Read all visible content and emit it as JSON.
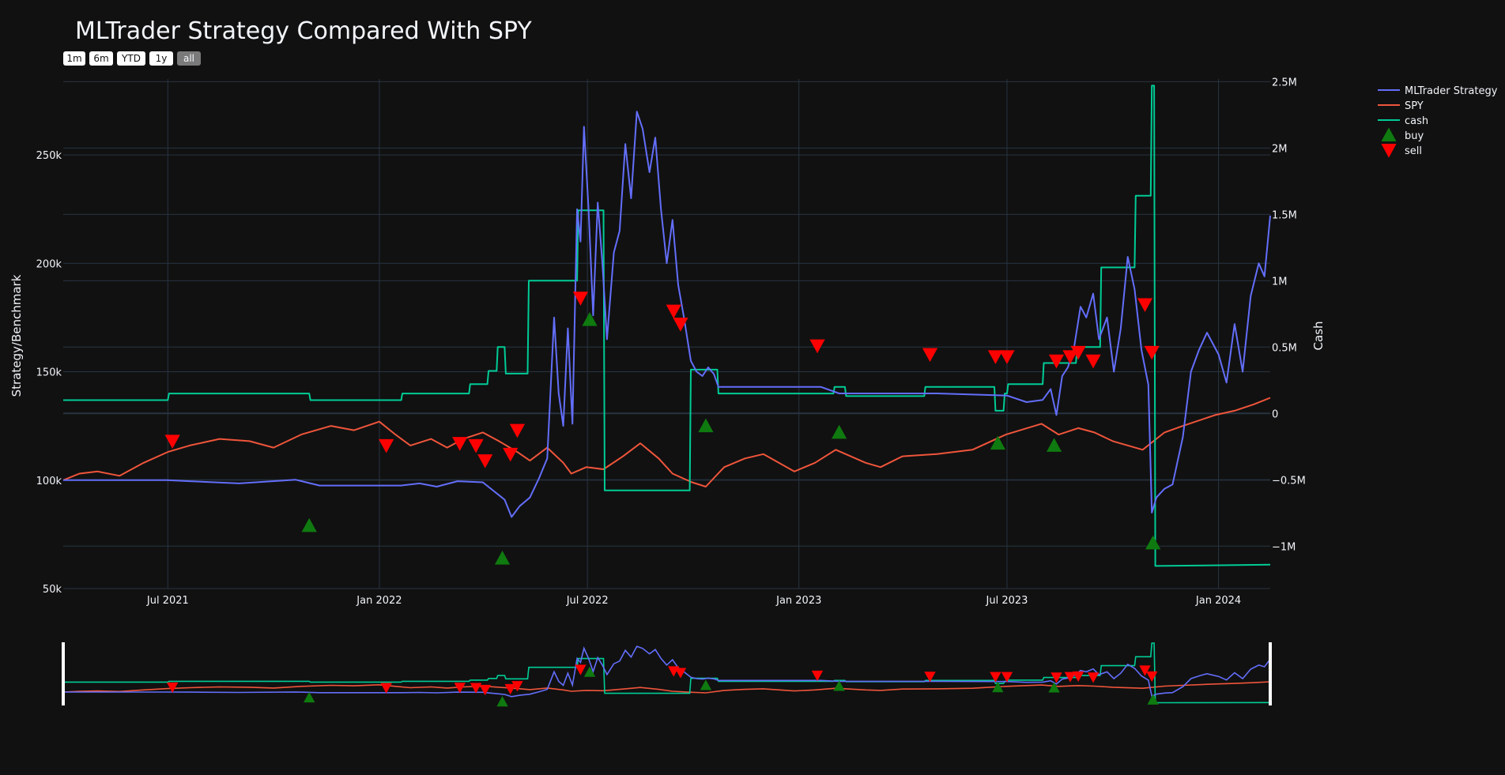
{
  "colors": {
    "background": "#111111",
    "grid": "#283442",
    "strategy": "#636efa",
    "spy": "#ef553b",
    "cash": "#00cc96",
    "buy": "#0f7a0f",
    "sell": "#ff0000"
  },
  "range_selector": {
    "buttons": [
      "1m",
      "6m",
      "YTD",
      "1y",
      "all"
    ],
    "active": "all"
  },
  "chart_data": {
    "type": "line",
    "title": "MLTrader Strategy Compared With SPY",
    "ylabel": "Strategy/Benchmark",
    "y2label": "Cash",
    "xlim": [
      "2021-04-01",
      "2024-02-15"
    ],
    "ylim": [
      50000,
      285000
    ],
    "y2lim": [
      -1320000,
      2520000
    ],
    "x_ticks": [
      {
        "date": "2021-07-01",
        "label": "Jul 2021"
      },
      {
        "date": "2022-01-01",
        "label": "Jan 2022"
      },
      {
        "date": "2022-07-01",
        "label": "Jul 2022"
      },
      {
        "date": "2023-01-01",
        "label": "Jan 2023"
      },
      {
        "date": "2023-07-01",
        "label": "Jul 2023"
      },
      {
        "date": "2024-01-01",
        "label": "Jan 2024"
      }
    ],
    "y_ticks": [
      {
        "value": 50000,
        "label": "50k"
      },
      {
        "value": 100000,
        "label": "100k"
      },
      {
        "value": 150000,
        "label": "150k"
      },
      {
        "value": 200000,
        "label": "200k"
      },
      {
        "value": 250000,
        "label": "250k"
      }
    ],
    "y2_ticks": [
      {
        "value": -1000000,
        "label": "−1M"
      },
      {
        "value": -500000,
        "label": "−0.5M"
      },
      {
        "value": 0,
        "label": "0"
      },
      {
        "value": 500000,
        "label": "0.5M"
      },
      {
        "value": 1000000,
        "label": "1M"
      },
      {
        "value": 1500000,
        "label": "1.5M"
      },
      {
        "value": 2000000,
        "label": "2M"
      },
      {
        "value": 2500000,
        "label": "2.5M"
      }
    ],
    "legend_position": "top-right",
    "series": [
      {
        "name": "MLTrader Strategy",
        "axis": "y",
        "points": [
          [
            "2021-04-01",
            100000
          ],
          [
            "2021-06-30",
            100000
          ],
          [
            "2021-07-20",
            99500
          ],
          [
            "2021-09-01",
            98500
          ],
          [
            "2021-10-20",
            100200
          ],
          [
            "2021-11-10",
            97500
          ],
          [
            "2022-01-01",
            97500
          ],
          [
            "2022-01-20",
            97500
          ],
          [
            "2022-02-05",
            98500
          ],
          [
            "2022-02-20",
            97000
          ],
          [
            "2022-03-10",
            99500
          ],
          [
            "2022-04-01",
            99000
          ],
          [
            "2022-04-20",
            91000
          ],
          [
            "2022-04-26",
            83000
          ],
          [
            "2022-05-03",
            88000
          ],
          [
            "2022-05-12",
            92000
          ],
          [
            "2022-05-20",
            101000
          ],
          [
            "2022-05-27",
            110000
          ],
          [
            "2022-06-02",
            175000
          ],
          [
            "2022-06-06",
            140000
          ],
          [
            "2022-06-10",
            125000
          ],
          [
            "2022-06-14",
            170000
          ],
          [
            "2022-06-18",
            126000
          ],
          [
            "2022-06-22",
            225000
          ],
          [
            "2022-06-25",
            210000
          ],
          [
            "2022-06-28",
            263000
          ],
          [
            "2022-07-02",
            225000
          ],
          [
            "2022-07-06",
            176000
          ],
          [
            "2022-07-10",
            228000
          ],
          [
            "2022-07-14",
            200000
          ],
          [
            "2022-07-18",
            165000
          ],
          [
            "2022-07-24",
            205000
          ],
          [
            "2022-07-29",
            215000
          ],
          [
            "2022-08-03",
            255000
          ],
          [
            "2022-08-08",
            230000
          ],
          [
            "2022-08-13",
            270000
          ],
          [
            "2022-08-18",
            262000
          ],
          [
            "2022-08-24",
            242000
          ],
          [
            "2022-08-29",
            258000
          ],
          [
            "2022-09-03",
            225000
          ],
          [
            "2022-09-08",
            200000
          ],
          [
            "2022-09-13",
            220000
          ],
          [
            "2022-09-18",
            190000
          ],
          [
            "2022-09-23",
            175000
          ],
          [
            "2022-09-29",
            155000
          ],
          [
            "2022-10-04",
            150000
          ],
          [
            "2022-10-09",
            148000
          ],
          [
            "2022-10-14",
            152000
          ],
          [
            "2022-10-19",
            149000
          ],
          [
            "2022-10-23",
            143000
          ],
          [
            "2023-01-01",
            143000
          ],
          [
            "2023-01-20",
            143000
          ],
          [
            "2023-02-05",
            140000
          ],
          [
            "2023-05-01",
            140000
          ],
          [
            "2023-07-01",
            139000
          ],
          [
            "2023-07-18",
            136000
          ],
          [
            "2023-08-01",
            137000
          ],
          [
            "2023-08-08",
            142000
          ],
          [
            "2023-08-13",
            130000
          ],
          [
            "2023-08-18",
            148000
          ],
          [
            "2023-08-23",
            152000
          ],
          [
            "2023-08-28",
            160000
          ],
          [
            "2023-09-03",
            180000
          ],
          [
            "2023-09-08",
            175000
          ],
          [
            "2023-09-14",
            186000
          ],
          [
            "2023-09-19",
            165000
          ],
          [
            "2023-09-26",
            175000
          ],
          [
            "2023-10-02",
            150000
          ],
          [
            "2023-10-08",
            170000
          ],
          [
            "2023-10-14",
            203000
          ],
          [
            "2023-10-20",
            188000
          ],
          [
            "2023-10-26",
            160000
          ],
          [
            "2023-11-01",
            144000
          ],
          [
            "2023-11-04",
            85000
          ],
          [
            "2023-11-08",
            92000
          ],
          [
            "2023-11-15",
            96000
          ],
          [
            "2023-11-22",
            98000
          ],
          [
            "2023-12-01",
            120000
          ],
          [
            "2023-12-08",
            150000
          ],
          [
            "2023-12-15",
            160000
          ],
          [
            "2023-12-22",
            168000
          ],
          [
            "2024-01-01",
            158000
          ],
          [
            "2024-01-08",
            145000
          ],
          [
            "2024-01-15",
            172000
          ],
          [
            "2024-01-22",
            150000
          ],
          [
            "2024-01-29",
            185000
          ],
          [
            "2024-02-05",
            200000
          ],
          [
            "2024-02-10",
            194000
          ],
          [
            "2024-02-15",
            222000
          ]
        ]
      },
      {
        "name": "SPY",
        "axis": "y",
        "points": [
          [
            "2021-04-01",
            100000
          ],
          [
            "2021-04-15",
            103000
          ],
          [
            "2021-05-01",
            104000
          ],
          [
            "2021-05-20",
            102000
          ],
          [
            "2021-06-10",
            108000
          ],
          [
            "2021-07-01",
            113000
          ],
          [
            "2021-07-20",
            116000
          ],
          [
            "2021-08-15",
            119000
          ],
          [
            "2021-09-10",
            118000
          ],
          [
            "2021-10-01",
            115000
          ],
          [
            "2021-10-25",
            121000
          ],
          [
            "2021-11-20",
            125000
          ],
          [
            "2021-12-10",
            123000
          ],
          [
            "2022-01-01",
            127000
          ],
          [
            "2022-01-15",
            121000
          ],
          [
            "2022-01-28",
            116000
          ],
          [
            "2022-02-15",
            119000
          ],
          [
            "2022-03-01",
            115000
          ],
          [
            "2022-03-15",
            119000
          ],
          [
            "2022-04-01",
            122000
          ],
          [
            "2022-04-15",
            118000
          ],
          [
            "2022-05-01",
            113000
          ],
          [
            "2022-05-12",
            109000
          ],
          [
            "2022-05-27",
            115000
          ],
          [
            "2022-06-10",
            108000
          ],
          [
            "2022-06-17",
            103000
          ],
          [
            "2022-06-30",
            106000
          ],
          [
            "2022-07-15",
            105000
          ],
          [
            "2022-08-01",
            111000
          ],
          [
            "2022-08-16",
            117000
          ],
          [
            "2022-09-01",
            110000
          ],
          [
            "2022-09-13",
            103000
          ],
          [
            "2022-09-30",
            99000
          ],
          [
            "2022-10-12",
            97000
          ],
          [
            "2022-10-28",
            106000
          ],
          [
            "2022-11-15",
            110000
          ],
          [
            "2022-12-01",
            112000
          ],
          [
            "2022-12-28",
            104000
          ],
          [
            "2023-01-15",
            108000
          ],
          [
            "2023-02-02",
            114000
          ],
          [
            "2023-02-28",
            108000
          ],
          [
            "2023-03-13",
            106000
          ],
          [
            "2023-04-01",
            111000
          ],
          [
            "2023-05-01",
            112000
          ],
          [
            "2023-06-01",
            114000
          ],
          [
            "2023-06-30",
            121000
          ],
          [
            "2023-07-31",
            126000
          ],
          [
            "2023-08-15",
            121000
          ],
          [
            "2023-09-01",
            124000
          ],
          [
            "2023-09-15",
            122000
          ],
          [
            "2023-10-01",
            118000
          ],
          [
            "2023-10-27",
            114000
          ],
          [
            "2023-11-15",
            122000
          ],
          [
            "2023-12-01",
            125000
          ],
          [
            "2023-12-29",
            130000
          ],
          [
            "2024-01-15",
            132000
          ],
          [
            "2024-02-01",
            135000
          ],
          [
            "2024-02-15",
            138000
          ]
        ]
      },
      {
        "name": "cash",
        "axis": "y2",
        "step": true,
        "points": [
          [
            "2021-04-01",
            100000
          ],
          [
            "2021-07-01",
            100000
          ],
          [
            "2021-07-02",
            150000
          ],
          [
            "2021-11-01",
            150000
          ],
          [
            "2021-11-02",
            100000
          ],
          [
            "2022-01-20",
            100000
          ],
          [
            "2022-01-21",
            150000
          ],
          [
            "2022-03-20",
            150000
          ],
          [
            "2022-03-21",
            220000
          ],
          [
            "2022-04-05",
            220000
          ],
          [
            "2022-04-06",
            320000
          ],
          [
            "2022-04-13",
            320000
          ],
          [
            "2022-04-14",
            500000
          ],
          [
            "2022-04-20",
            500000
          ],
          [
            "2022-04-21",
            300000
          ],
          [
            "2022-05-10",
            300000
          ],
          [
            "2022-05-11",
            1000000
          ],
          [
            "2022-06-22",
            1000000
          ],
          [
            "2022-06-23",
            1530000
          ],
          [
            "2022-07-15",
            1530000
          ],
          [
            "2022-07-16",
            -580000
          ],
          [
            "2022-09-28",
            -580000
          ],
          [
            "2022-09-29",
            330000
          ],
          [
            "2022-10-22",
            330000
          ],
          [
            "2022-10-23",
            150000
          ],
          [
            "2023-01-31",
            150000
          ],
          [
            "2023-02-01",
            200000
          ],
          [
            "2023-02-10",
            200000
          ],
          [
            "2023-02-11",
            130000
          ],
          [
            "2023-04-20",
            130000
          ],
          [
            "2023-04-21",
            200000
          ],
          [
            "2023-06-20",
            200000
          ],
          [
            "2023-06-21",
            20000
          ],
          [
            "2023-06-28",
            20000
          ],
          [
            "2023-06-29",
            150000
          ],
          [
            "2023-07-01",
            150000
          ],
          [
            "2023-07-02",
            220000
          ],
          [
            "2023-08-01",
            220000
          ],
          [
            "2023-08-02",
            380000
          ],
          [
            "2023-08-30",
            380000
          ],
          [
            "2023-08-31",
            500000
          ],
          [
            "2023-09-20",
            500000
          ],
          [
            "2023-09-21",
            1100000
          ],
          [
            "2023-10-20",
            1100000
          ],
          [
            "2023-10-21",
            1640000
          ],
          [
            "2023-11-03",
            1640000
          ],
          [
            "2023-11-04",
            2470000
          ],
          [
            "2023-11-06",
            2470000
          ],
          [
            "2023-11-07",
            -1150000
          ],
          [
            "2024-02-15",
            -1140000
          ]
        ]
      },
      {
        "name": "buy",
        "axis": "y",
        "marker": "triangle-up",
        "points": [
          [
            "2021-11-01",
            79000
          ],
          [
            "2022-04-18",
            64000
          ],
          [
            "2022-07-03",
            174000
          ],
          [
            "2022-10-12",
            125000
          ],
          [
            "2023-02-05",
            122000
          ],
          [
            "2023-06-23",
            117000
          ],
          [
            "2023-08-11",
            116000
          ],
          [
            "2023-11-05",
            71000
          ]
        ]
      },
      {
        "name": "sell",
        "axis": "y",
        "marker": "triangle-down",
        "points": [
          [
            "2021-07-05",
            118000
          ],
          [
            "2022-01-07",
            116000
          ],
          [
            "2022-03-12",
            117000
          ],
          [
            "2022-03-26",
            116000
          ],
          [
            "2022-04-03",
            109000
          ],
          [
            "2022-04-25",
            112000
          ],
          [
            "2022-05-01",
            123000
          ],
          [
            "2022-06-25",
            184000
          ],
          [
            "2022-09-14",
            178000
          ],
          [
            "2022-09-20",
            172000
          ],
          [
            "2023-01-17",
            162000
          ],
          [
            "2023-04-25",
            158000
          ],
          [
            "2023-06-21",
            157000
          ],
          [
            "2023-07-01",
            157000
          ],
          [
            "2023-08-13",
            155000
          ],
          [
            "2023-08-25",
            157000
          ],
          [
            "2023-09-01",
            159000
          ],
          [
            "2023-09-14",
            155000
          ],
          [
            "2023-10-29",
            181000
          ],
          [
            "2023-11-04",
            159000
          ]
        ]
      }
    ]
  }
}
